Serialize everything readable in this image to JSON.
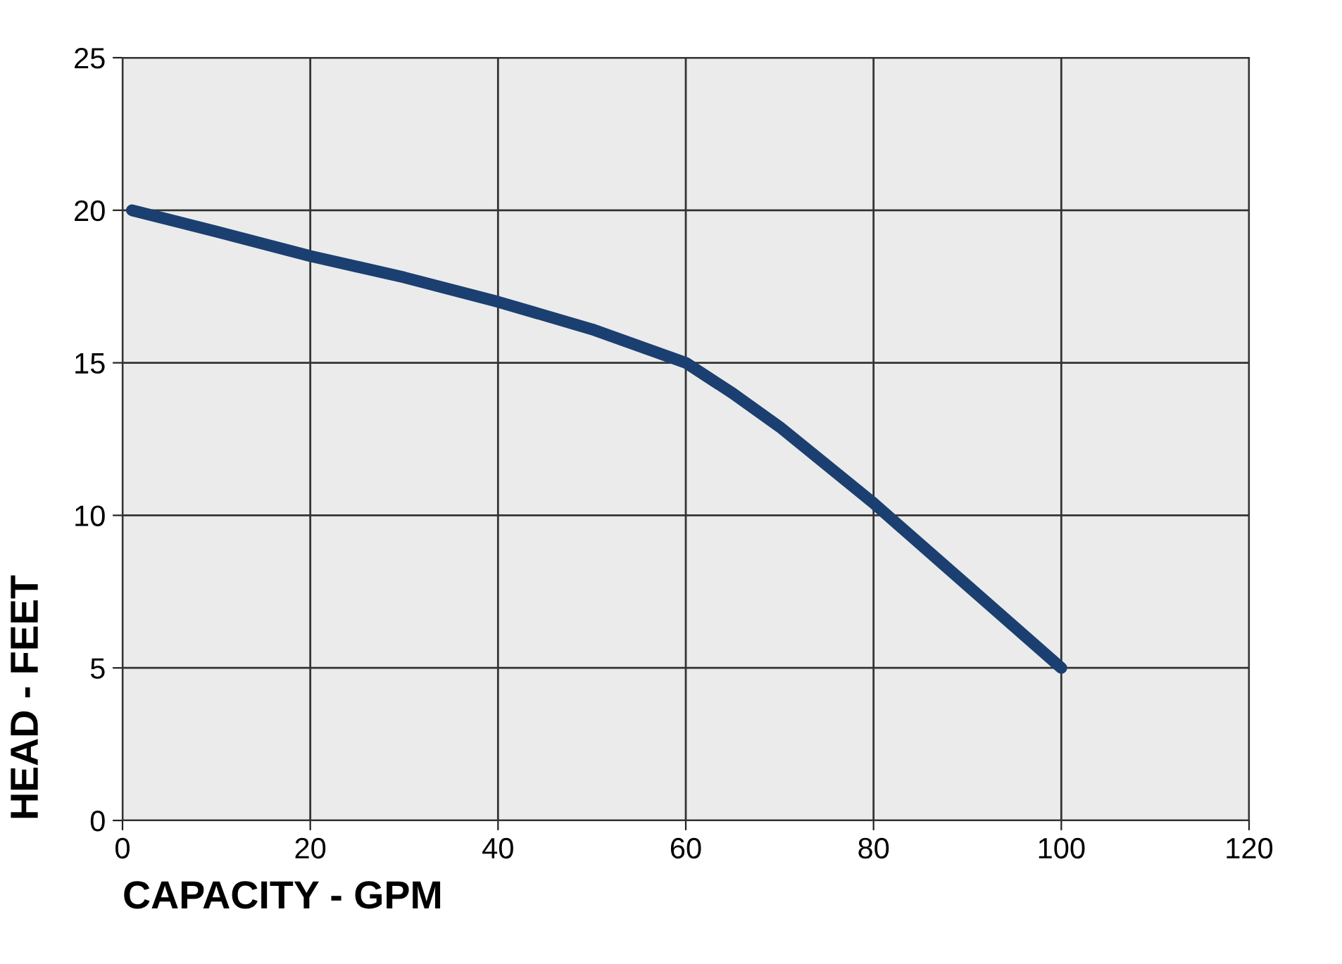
{
  "chart_data": {
    "type": "line",
    "xlabel": "CAPACITY - GPM",
    "ylabel": "HEAD - FEET",
    "x": [
      1,
      10,
      20,
      30,
      40,
      50,
      60,
      65,
      70,
      80,
      90,
      100
    ],
    "series": [
      {
        "color": "#1b3f70",
        "values": [
          20,
          19.3,
          18.5,
          17.8,
          17.0,
          16.1,
          15.0,
          14.0,
          12.9,
          10.4,
          7.7,
          5.0
        ]
      }
    ],
    "xlim": [
      0,
      120
    ],
    "ylim": [
      0,
      25
    ],
    "xticks": [
      0,
      20,
      40,
      60,
      80,
      100,
      120
    ],
    "yticks": [
      0,
      5,
      10,
      15,
      20,
      25
    ],
    "grid": true,
    "marker": "none",
    "line_style": "solid"
  }
}
